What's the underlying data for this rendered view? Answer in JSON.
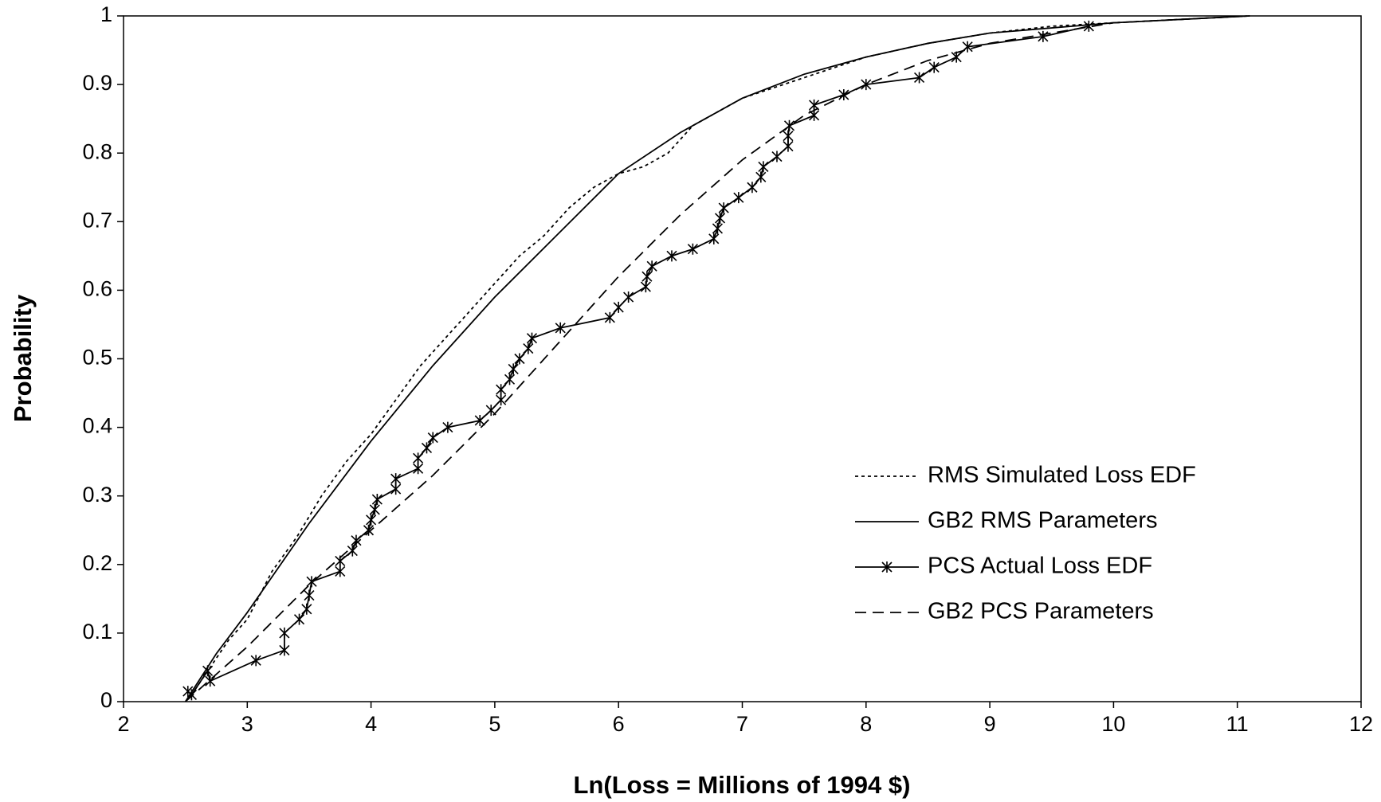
{
  "chart_data": {
    "type": "line",
    "x_label": "Ln(Loss = Millions of 1994 $)",
    "y_label": "Probability",
    "xlim": [
      2,
      12
    ],
    "xticks": [
      2,
      3,
      4,
      5,
      6,
      7,
      8,
      9,
      10,
      11,
      12
    ],
    "ylim": [
      0,
      1
    ],
    "yticks": [
      0,
      0.1,
      0.2,
      0.3,
      0.4,
      0.5,
      0.6,
      0.7,
      0.8,
      0.9,
      1
    ],
    "grid": false,
    "legend": "lower right",
    "series": [
      {
        "name": "RMS Simulated Loss EDF",
        "color": "#000000",
        "dash": "dotted",
        "marker": null,
        "x": [
          2.55,
          2.7,
          2.85,
          3.0,
          3.2,
          3.4,
          3.6,
          3.8,
          4.0,
          4.2,
          4.4,
          4.6,
          4.8,
          5.0,
          5.2,
          5.4,
          5.6,
          5.8,
          6.0,
          6.2,
          6.4,
          6.6,
          6.8,
          7.0,
          7.5,
          8.0,
          8.5,
          9.0,
          9.5,
          10,
          11.1
        ],
        "values": [
          0.01,
          0.05,
          0.09,
          0.12,
          0.19,
          0.24,
          0.3,
          0.35,
          0.39,
          0.44,
          0.49,
          0.53,
          0.57,
          0.61,
          0.65,
          0.68,
          0.72,
          0.75,
          0.77,
          0.78,
          0.8,
          0.84,
          0.86,
          0.88,
          0.91,
          0.94,
          0.96,
          0.975,
          0.985,
          0.99,
          1.0
        ]
      },
      {
        "name": "GB2 RMS Parameters",
        "color": "#000000",
        "dash": "solid",
        "marker": null,
        "x": [
          2.5,
          2.75,
          3.0,
          3.5,
          4.0,
          4.5,
          5.0,
          5.5,
          6.0,
          6.5,
          7.0,
          7.5,
          8.0,
          8.5,
          9.0,
          10,
          11.1
        ],
        "values": [
          0,
          0.07,
          0.13,
          0.26,
          0.38,
          0.49,
          0.59,
          0.68,
          0.77,
          0.83,
          0.88,
          0.915,
          0.94,
          0.96,
          0.975,
          0.99,
          1.0
        ]
      },
      {
        "name": "PCS Actual Loss EDF",
        "color": "#000000",
        "dash": "solid",
        "marker": "asterisk",
        "x": [
          2.52,
          2.55,
          2.68,
          2.7,
          3.07,
          3.3,
          3.3,
          3.42,
          3.48,
          3.5,
          3.52,
          3.75,
          3.75,
          3.85,
          3.88,
          3.98,
          4.0,
          4.03,
          4.05,
          4.2,
          4.2,
          4.38,
          4.38,
          4.45,
          4.5,
          4.62,
          4.88,
          4.97,
          5.05,
          5.05,
          5.12,
          5.15,
          5.2,
          5.27,
          5.3,
          5.53,
          5.93,
          6.0,
          6.08,
          6.22,
          6.23,
          6.27,
          6.43,
          6.6,
          6.77,
          6.8,
          6.82,
          6.85,
          6.97,
          7.08,
          7.15,
          7.17,
          7.28,
          7.37,
          7.37,
          7.38,
          7.58,
          7.58,
          7.82,
          8.0,
          8.43,
          8.55,
          8.73,
          8.82,
          9.43,
          9.8
        ],
        "values": [
          0.015,
          0.01,
          0.045,
          0.03,
          0.06,
          0.075,
          0.1,
          0.12,
          0.135,
          0.155,
          0.175,
          0.19,
          0.205,
          0.22,
          0.235,
          0.25,
          0.265,
          0.28,
          0.295,
          0.31,
          0.325,
          0.34,
          0.355,
          0.37,
          0.385,
          0.4,
          0.41,
          0.425,
          0.44,
          0.455,
          0.47,
          0.485,
          0.5,
          0.515,
          0.53,
          0.545,
          0.56,
          0.575,
          0.59,
          0.605,
          0.62,
          0.635,
          0.65,
          0.66,
          0.675,
          0.69,
          0.705,
          0.72,
          0.735,
          0.75,
          0.765,
          0.78,
          0.795,
          0.81,
          0.825,
          0.84,
          0.855,
          0.87,
          0.885,
          0.9,
          0.91,
          0.925,
          0.94,
          0.955,
          0.97,
          0.985
        ]
      },
      {
        "name": "GB2 PCS Parameters",
        "color": "#000000",
        "dash": "dashed",
        "marker": null,
        "x": [
          2.5,
          3.0,
          3.5,
          4.0,
          4.5,
          5.0,
          5.5,
          6.0,
          6.5,
          7.0,
          7.5,
          8.0,
          8.5,
          9.0,
          9.5,
          10,
          11.1
        ],
        "values": [
          0,
          0.08,
          0.17,
          0.25,
          0.33,
          0.42,
          0.52,
          0.62,
          0.71,
          0.79,
          0.855,
          0.9,
          0.935,
          0.96,
          0.975,
          0.99,
          1.0
        ]
      }
    ]
  }
}
